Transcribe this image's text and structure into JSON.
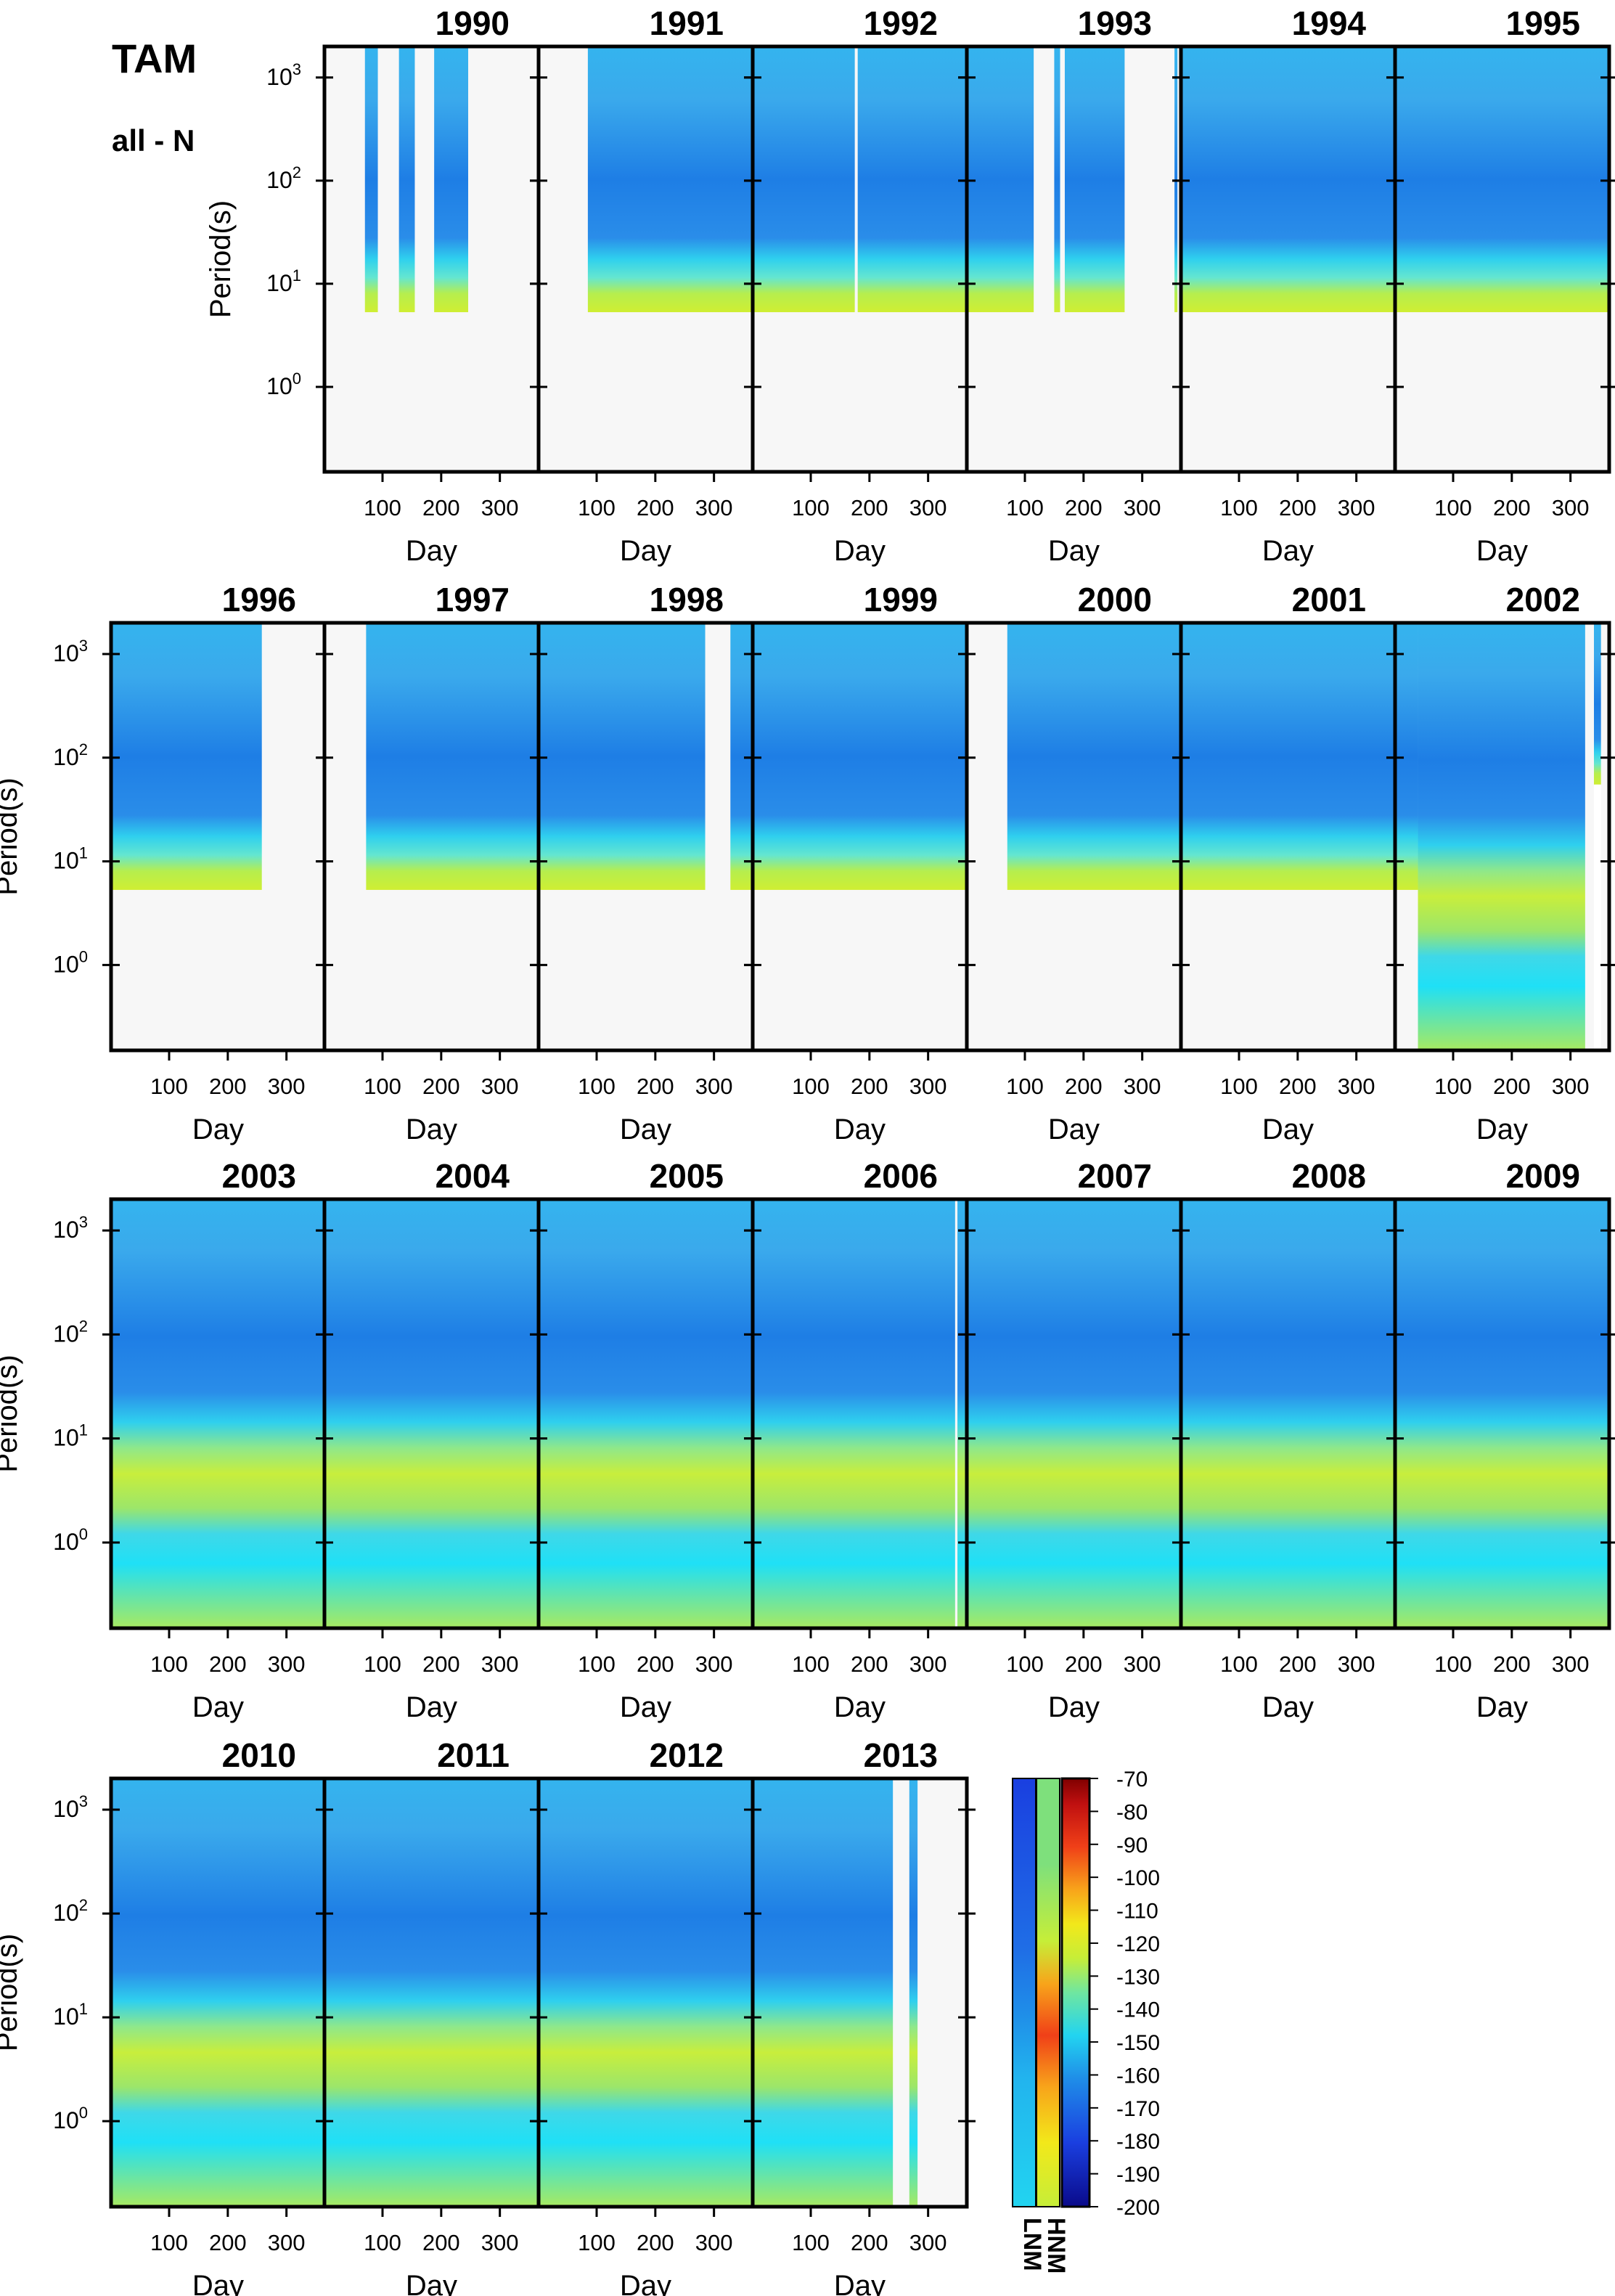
{
  "header": {
    "station": "TAM",
    "component": "all - N"
  },
  "chart_data": {
    "type": "heatmap",
    "description_units": "PSD (dB)",
    "xlabel": "Day",
    "ylabel": "Period(s)",
    "x_ticks": [
      100,
      200,
      300
    ],
    "x_range": [
      1,
      366
    ],
    "y_scale": "log",
    "y_ticks": [
      1,
      10,
      100,
      1000
    ],
    "y_tick_labels": [
      "10^0",
      "10^1",
      "10^2",
      "10^3"
    ],
    "y_range": [
      0.15,
      2000
    ],
    "panels": [
      {
        "year": "1990",
        "segments": [
          [
            70,
            92
          ],
          [
            128,
            155
          ],
          [
            188,
            246
          ]
        ],
        "short_period": false
      },
      {
        "year": "1991",
        "segments": [
          [
            85,
            366
          ]
        ],
        "short_period": false
      },
      {
        "year": "1992",
        "segments": [
          [
            1,
            175
          ],
          [
            180,
            366
          ]
        ],
        "short_period": false
      },
      {
        "year": "1993",
        "segments": [
          [
            1,
            115
          ],
          [
            150,
            160
          ],
          [
            168,
            270
          ],
          [
            355,
            360
          ]
        ],
        "short_period": false
      },
      {
        "year": "1994",
        "segments": [
          [
            1,
            366
          ]
        ],
        "short_period": false
      },
      {
        "year": "1995",
        "segments": [
          [
            1,
            366
          ]
        ],
        "short_period": false
      },
      {
        "year": "1996",
        "segments": [
          [
            1,
            258
          ]
        ],
        "short_period": false
      },
      {
        "year": "1997",
        "segments": [
          [
            72,
            366
          ]
        ],
        "short_period": false
      },
      {
        "year": "1998",
        "segments": [
          [
            1,
            285
          ],
          [
            328,
            366
          ]
        ],
        "short_period": false
      },
      {
        "year": "1999",
        "segments": [
          [
            1,
            366
          ]
        ],
        "short_period": false
      },
      {
        "year": "2000",
        "segments": [
          [
            70,
            366
          ]
        ],
        "short_period": false
      },
      {
        "year": "2001",
        "segments": [
          [
            1,
            366
          ]
        ],
        "short_period": false
      },
      {
        "year": "2002",
        "segments": [
          [
            1,
            40
          ],
          [
            40,
            325
          ]
        ],
        "short_period": true,
        "short_from_day": 40,
        "extra_strip": [
          340,
          352,
          55
        ]
      },
      {
        "year": "2003",
        "segments": [
          [
            1,
            366
          ]
        ],
        "short_period": true
      },
      {
        "year": "2004",
        "segments": [
          [
            1,
            366
          ]
        ],
        "short_period": true
      },
      {
        "year": "2005",
        "segments": [
          [
            1,
            366
          ]
        ],
        "short_period": true
      },
      {
        "year": "2006",
        "segments": [
          [
            1,
            346
          ],
          [
            350,
            366
          ]
        ],
        "short_period": true
      },
      {
        "year": "2007",
        "segments": [
          [
            1,
            366
          ]
        ],
        "short_period": true
      },
      {
        "year": "2008",
        "segments": [
          [
            1,
            366
          ]
        ],
        "short_period": true
      },
      {
        "year": "2009",
        "segments": [
          [
            1,
            366
          ]
        ],
        "short_period": true
      },
      {
        "year": "2010",
        "segments": [
          [
            1,
            366
          ]
        ],
        "short_period": true
      },
      {
        "year": "2011",
        "segments": [
          [
            1,
            366
          ]
        ],
        "short_period": true
      },
      {
        "year": "2012",
        "segments": [
          [
            1,
            366
          ]
        ],
        "short_period": true
      },
      {
        "year": "2013",
        "segments": [
          [
            1,
            240
          ],
          [
            268,
            282
          ]
        ],
        "short_period": true
      }
    ],
    "colorbar": {
      "range": [
        -200,
        -70
      ],
      "ticks": [
        "-70",
        "-80",
        "-90",
        "-100",
        "-110",
        "-120",
        "-130",
        "-140",
        "-150",
        "-160",
        "-170",
        "-180",
        "-190",
        "-200"
      ],
      "reference_labels": [
        "LNM",
        "HNM"
      ]
    }
  }
}
